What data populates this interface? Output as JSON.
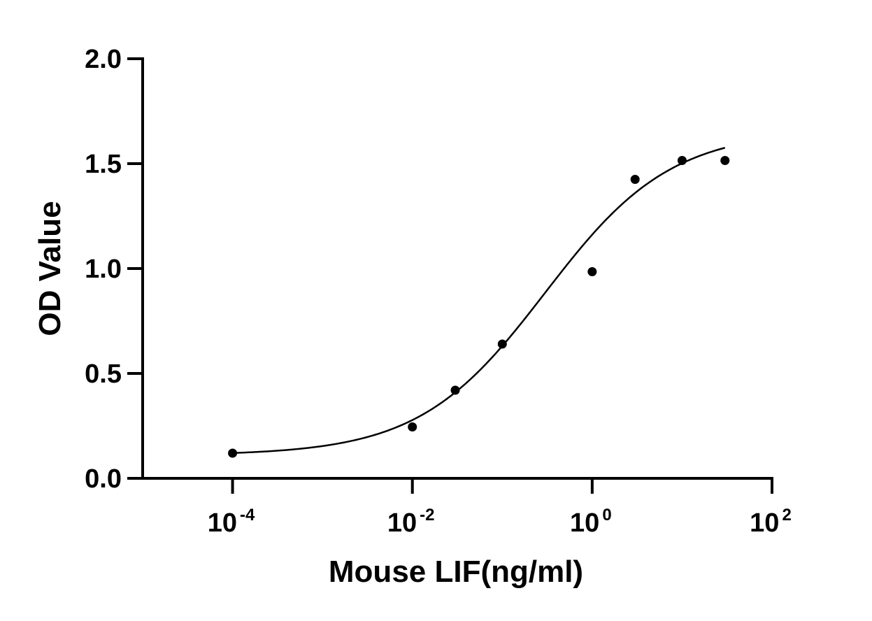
{
  "chart_data": {
    "type": "scatter",
    "xlabel": "Mouse LIF(ng/ml)",
    "ylabel": "OD Value",
    "x_scale": "log10",
    "xlim": [
      1e-05,
      100
    ],
    "ylim": [
      0,
      2.0
    ],
    "y_ticks": [
      {
        "value": 0.0,
        "label": "0.0"
      },
      {
        "value": 0.5,
        "label": "0.5"
      },
      {
        "value": 1.0,
        "label": "1.0"
      },
      {
        "value": 1.5,
        "label": "1.5"
      },
      {
        "value": 2.0,
        "label": "2.0"
      }
    ],
    "x_ticks": [
      {
        "value": 0.0001,
        "base": "10",
        "exp": "-4"
      },
      {
        "value": 0.01,
        "base": "10",
        "exp": "-2"
      },
      {
        "value": 1,
        "base": "10",
        "exp": "0"
      },
      {
        "value": 100,
        "base": "10",
        "exp": "2"
      }
    ],
    "series": [
      {
        "x": [
          0.0001,
          0.01,
          0.03,
          0.1,
          1,
          3,
          10,
          30
        ],
        "y": [
          0.12,
          0.245,
          0.42,
          0.64,
          0.985,
          1.425,
          1.515,
          1.515
        ]
      }
    ],
    "fit": {
      "type": "4PL",
      "bottom": 0.11,
      "top": 1.66,
      "ec50": 0.3,
      "hill": 0.62,
      "x_range": [
        0.0001,
        30
      ]
    },
    "grid": false,
    "legend": "none",
    "colors": {
      "points": "#000000",
      "curve": "#000000",
      "axes": "#000000"
    }
  }
}
